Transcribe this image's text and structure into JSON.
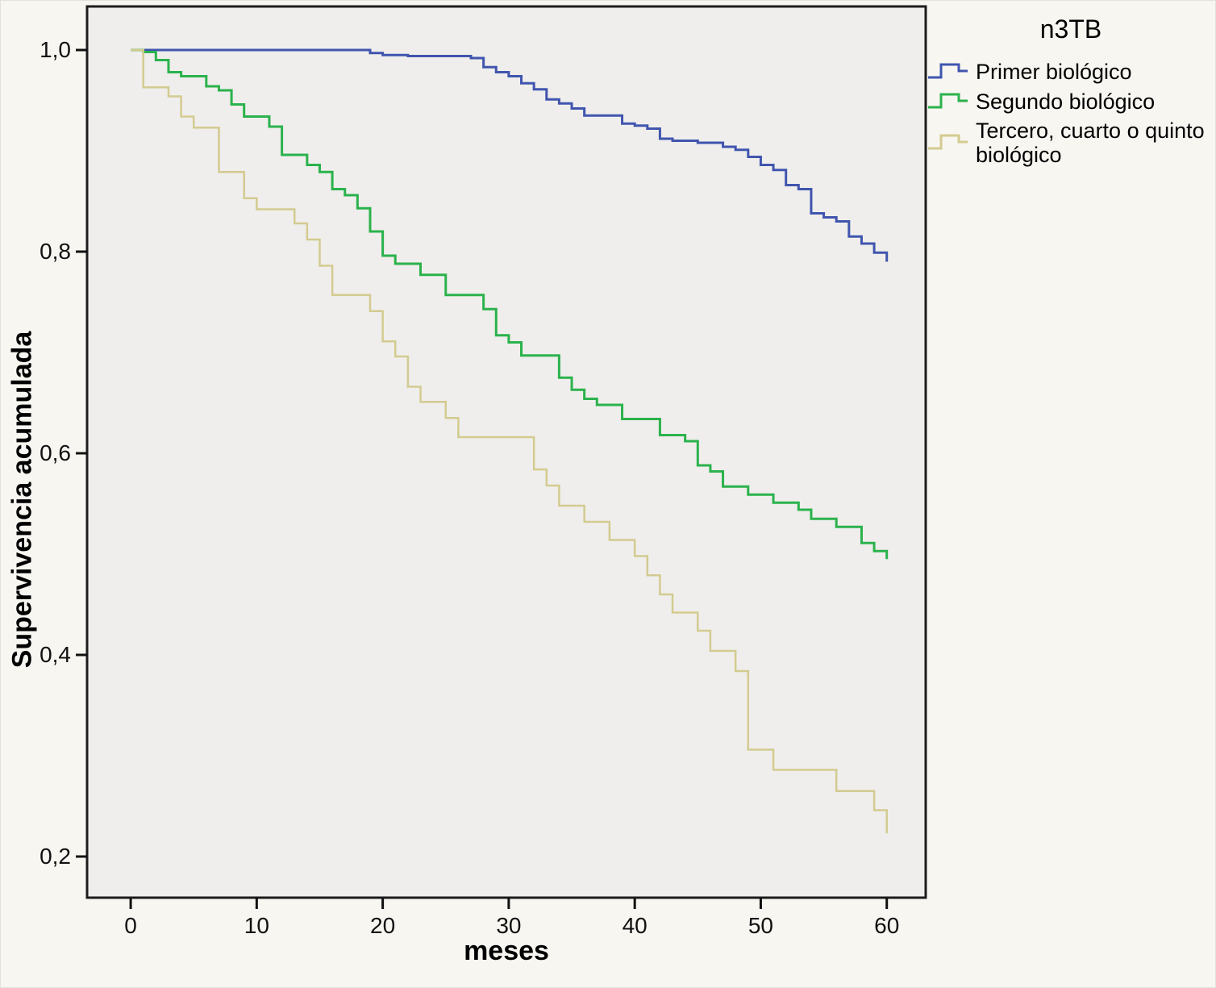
{
  "figure": {
    "x_axis_title": "meses",
    "y_axis_title": "Supervivencia acumulada"
  },
  "legend": {
    "title": "n3TB",
    "items": [
      {
        "label": "Primer biológico"
      },
      {
        "label": "Segundo biológico"
      },
      {
        "label": "Tercero, cuarto o quinto biológico"
      }
    ]
  },
  "chart_data": {
    "type": "line",
    "subtype": "kaplan-meier-step",
    "title": "n3TB",
    "xlabel": "meses",
    "ylabel": "Supervivencia acumulada",
    "grid": false,
    "legend_position": "outside-top-right",
    "plot_bg": "#efeeec",
    "border_color": "#1c1c1c",
    "x_ticks": [
      0,
      10,
      20,
      30,
      40,
      50,
      60
    ],
    "x_tick_labels": [
      "0",
      "10",
      "20",
      "30",
      "40",
      "50",
      "60"
    ],
    "y_ticks": [
      1.0,
      0.8,
      0.6,
      0.4,
      0.2
    ],
    "y_tick_labels": [
      "1,0",
      "0,8",
      "0,6",
      "0,4",
      "0,2"
    ],
    "xlim": [
      -3.46,
      63.09
    ],
    "ylim": [
      0.1592,
      1.0432
    ],
    "series": [
      {
        "name": "Primer biológico",
        "color": "#4055ae",
        "stroke_width": 3,
        "start": [
          0,
          1.0
        ],
        "drops": [
          [
            19,
            0.997
          ],
          [
            20,
            0.995
          ],
          [
            22,
            0.994
          ],
          [
            27,
            0.992
          ],
          [
            28,
            0.983
          ],
          [
            29,
            0.978
          ],
          [
            30,
            0.974
          ],
          [
            31,
            0.967
          ],
          [
            32,
            0.961
          ],
          [
            33,
            0.951
          ],
          [
            34,
            0.947
          ],
          [
            35,
            0.942
          ],
          [
            36,
            0.935
          ],
          [
            39,
            0.927
          ],
          [
            40,
            0.925
          ],
          [
            41,
            0.922
          ],
          [
            42,
            0.912
          ],
          [
            43,
            0.91
          ],
          [
            45,
            0.908
          ],
          [
            47,
            0.904
          ],
          [
            48,
            0.901
          ],
          [
            49,
            0.894
          ],
          [
            50,
            0.886
          ],
          [
            51,
            0.881
          ],
          [
            52,
            0.866
          ],
          [
            53,
            0.862
          ],
          [
            54,
            0.838
          ],
          [
            55,
            0.834
          ],
          [
            56,
            0.83
          ],
          [
            57,
            0.815
          ],
          [
            58,
            0.808
          ],
          [
            59,
            0.799
          ],
          [
            60,
            0.79
          ]
        ]
      },
      {
        "name": "Segundo biológico",
        "color": "#2bb24c",
        "stroke_width": 3,
        "start": [
          0,
          1.0
        ],
        "drops": [
          [
            1,
            0.998
          ],
          [
            2,
            0.99
          ],
          [
            3,
            0.978
          ],
          [
            4,
            0.974
          ],
          [
            6,
            0.964
          ],
          [
            7,
            0.96
          ],
          [
            8,
            0.946
          ],
          [
            9,
            0.934
          ],
          [
            11,
            0.924
          ],
          [
            12,
            0.896
          ],
          [
            14,
            0.886
          ],
          [
            15,
            0.879
          ],
          [
            16,
            0.862
          ],
          [
            17,
            0.856
          ],
          [
            18,
            0.843
          ],
          [
            19,
            0.82
          ],
          [
            20,
            0.796
          ],
          [
            21,
            0.788
          ],
          [
            23,
            0.777
          ],
          [
            25,
            0.757
          ],
          [
            28,
            0.743
          ],
          [
            29,
            0.717
          ],
          [
            30,
            0.71
          ],
          [
            31,
            0.697
          ],
          [
            34,
            0.675
          ],
          [
            35,
            0.663
          ],
          [
            36,
            0.654
          ],
          [
            37,
            0.648
          ],
          [
            39,
            0.634
          ],
          [
            42,
            0.618
          ],
          [
            44,
            0.612
          ],
          [
            45,
            0.588
          ],
          [
            46,
            0.582
          ],
          [
            47,
            0.567
          ],
          [
            49,
            0.559
          ],
          [
            51,
            0.551
          ],
          [
            53,
            0.544
          ],
          [
            54,
            0.535
          ],
          [
            56,
            0.527
          ],
          [
            58,
            0.511
          ],
          [
            59,
            0.503
          ],
          [
            60,
            0.495
          ]
        ]
      },
      {
        "name": "Tercero, cuarto o quinto biológico",
        "color": "#d3cb90",
        "stroke_width": 2.5,
        "start": [
          0,
          1.0
        ],
        "drops": [
          [
            1,
            0.963
          ],
          [
            3,
            0.954
          ],
          [
            4,
            0.934
          ],
          [
            5,
            0.923
          ],
          [
            7,
            0.879
          ],
          [
            9,
            0.853
          ],
          [
            10,
            0.842
          ],
          [
            13,
            0.828
          ],
          [
            14,
            0.812
          ],
          [
            15,
            0.786
          ],
          [
            16,
            0.757
          ],
          [
            19,
            0.741
          ],
          [
            20,
            0.711
          ],
          [
            21,
            0.696
          ],
          [
            22,
            0.666
          ],
          [
            23,
            0.651
          ],
          [
            25,
            0.635
          ],
          [
            26,
            0.616
          ],
          [
            32,
            0.584
          ],
          [
            33,
            0.568
          ],
          [
            34,
            0.548
          ],
          [
            36,
            0.532
          ],
          [
            38,
            0.514
          ],
          [
            40,
            0.498
          ],
          [
            41,
            0.479
          ],
          [
            42,
            0.46
          ],
          [
            43,
            0.442
          ],
          [
            45,
            0.424
          ],
          [
            46,
            0.404
          ],
          [
            48,
            0.384
          ],
          [
            49,
            0.306
          ],
          [
            51,
            0.286
          ],
          [
            56,
            0.265
          ],
          [
            59,
            0.246
          ],
          [
            60,
            0.223
          ]
        ]
      }
    ]
  }
}
